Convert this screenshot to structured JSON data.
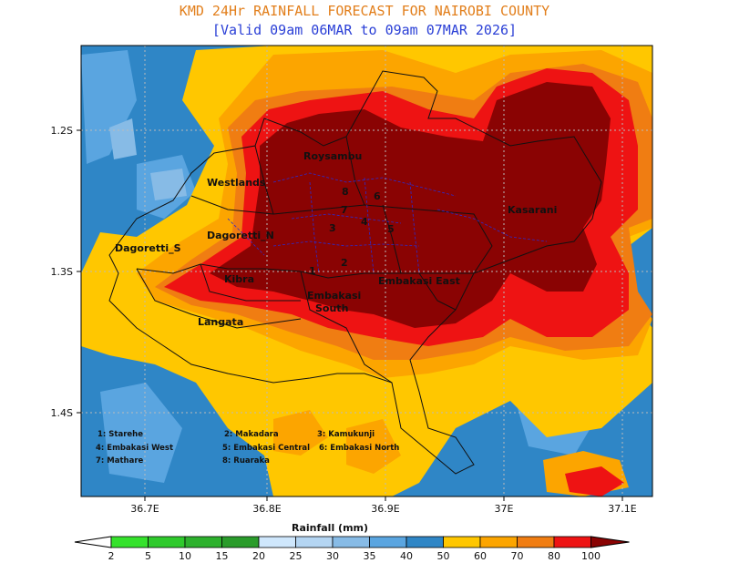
{
  "title": "KMD 24Hr RAINFALL FORECAST FOR NAIROBI COUNTY",
  "subtitle": "[Valid 09am 06MAR to 09am 07MAR 2026]",
  "map": {
    "lat_ticks": [
      "1.2S",
      "1.3S",
      "1.4S"
    ],
    "lon_ticks": [
      "36.7E",
      "36.8E",
      "36.9E",
      "37E",
      "37.1E"
    ],
    "subcounties": [
      {
        "name": "Roysambu",
        "size": 11
      },
      {
        "name": "Westlands",
        "size": 11
      },
      {
        "name": "Kasarani",
        "size": 11
      },
      {
        "name": "Dagoretti_N",
        "size": 11
      },
      {
        "name": "Dagoretti_S",
        "size": 11
      },
      {
        "name": "Kibra",
        "size": 11
      },
      {
        "name": "Embakasi East",
        "size": 11
      },
      {
        "name": "Embakasi",
        "size": 11
      },
      {
        "name": "South",
        "size": 11
      },
      {
        "name": "Langata",
        "size": 11
      }
    ],
    "numbers": [
      "1",
      "2",
      "3",
      "4",
      "5",
      "6",
      "7",
      "8"
    ],
    "key": [
      "1: Starehe",
      "2: Makadara",
      "3: Kamukunji",
      "4: Embakasi West",
      "5: Embakasi Central",
      "6: Embakasi North",
      "7: Mathare",
      "8: Ruaraka"
    ]
  },
  "colorbar": {
    "title": "Rainfall (mm)",
    "labels": [
      "2",
      "5",
      "10",
      "15",
      "20",
      "25",
      "30",
      "35",
      "40",
      "50",
      "60",
      "70",
      "80",
      "100"
    ],
    "colors": [
      "#ffffff",
      "#35e22c",
      "#2fca2c",
      "#2db12d",
      "#2a9c2b",
      "#cfe7fc",
      "#b4d5f2",
      "#87bbe6",
      "#5aa5e0",
      "#2f86c6",
      "#ffc700",
      "#fca500",
      "#f07d12",
      "#ee1313",
      "#8a0303"
    ]
  },
  "field_colors": {
    "c50": "#2f86c6",
    "c40": "#5aa5e0",
    "c35": "#87bbe6",
    "c60": "#ffc700",
    "c70": "#fca500",
    "c80": "#f07d12",
    "c90": "#ee1313",
    "c100": "#8a0303"
  }
}
